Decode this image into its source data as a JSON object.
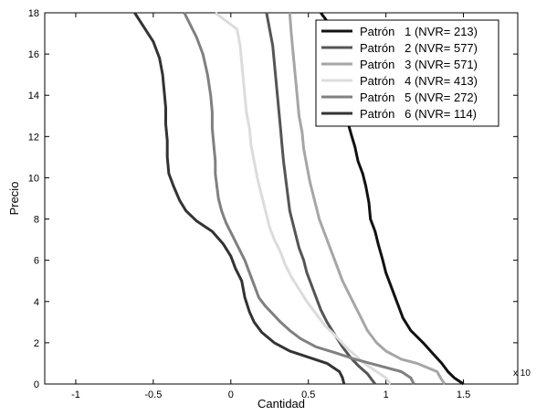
{
  "chart_data": {
    "type": "line",
    "xlabel": "Cantidad",
    "ylabel": "Precio",
    "exponent_label": "x 10",
    "xlim": [
      -1.2,
      1.85
    ],
    "ylim": [
      0,
      18
    ],
    "x_ticks": [
      -1,
      -0.5,
      0,
      0.5,
      1,
      1.5
    ],
    "x_tick_labels": [
      "-1",
      "-0.5",
      "0",
      "0.5",
      "1",
      "1.5"
    ],
    "y_ticks": [
      0,
      2,
      4,
      6,
      8,
      10,
      12,
      14,
      16,
      18
    ],
    "y_tick_labels": [
      "0",
      "2",
      "4",
      "6",
      "8",
      "10",
      "12",
      "14",
      "16",
      "18"
    ],
    "grid": false,
    "legend_position": "top-right",
    "series": [
      {
        "name": "Patrón   1 (NVR= 213)",
        "color": "#111111",
        "points": [
          [
            1.5,
            0
          ],
          [
            1.44,
            0.3
          ],
          [
            1.4,
            0.6
          ],
          [
            1.36,
            1.0
          ],
          [
            1.3,
            1.5
          ],
          [
            1.24,
            2.0
          ],
          [
            1.16,
            2.6
          ],
          [
            1.11,
            3.2
          ],
          [
            1.07,
            4.0
          ],
          [
            1.04,
            4.6
          ],
          [
            1.0,
            5.4
          ],
          [
            0.98,
            6.0
          ],
          [
            0.95,
            6.8
          ],
          [
            0.93,
            7.4
          ],
          [
            0.9,
            8.0
          ],
          [
            0.89,
            8.8
          ],
          [
            0.87,
            9.6
          ],
          [
            0.85,
            10.2
          ],
          [
            0.82,
            10.8
          ],
          [
            0.8,
            11.5
          ],
          [
            0.78,
            12.0
          ],
          [
            0.75,
            12.8
          ],
          [
            0.73,
            13.6
          ],
          [
            0.72,
            14.2
          ],
          [
            0.71,
            14.8
          ],
          [
            0.7,
            15.6
          ],
          [
            0.68,
            16.4
          ],
          [
            0.65,
            17.0
          ],
          [
            0.62,
            17.6
          ],
          [
            0.58,
            18.0
          ]
        ]
      },
      {
        "name": "Patrón   2 (NVR= 577)",
        "color": "#555555",
        "points": [
          [
            0.93,
            0
          ],
          [
            0.91,
            0.2
          ],
          [
            0.88,
            0.5
          ],
          [
            0.82,
            0.9
          ],
          [
            0.77,
            1.3
          ],
          [
            0.72,
            1.8
          ],
          [
            0.67,
            2.4
          ],
          [
            0.62,
            3.0
          ],
          [
            0.58,
            3.6
          ],
          [
            0.55,
            4.2
          ],
          [
            0.52,
            4.8
          ],
          [
            0.49,
            5.4
          ],
          [
            0.47,
            6.0
          ],
          [
            0.44,
            6.6
          ],
          [
            0.42,
            7.2
          ],
          [
            0.4,
            7.8
          ],
          [
            0.38,
            8.4
          ],
          [
            0.37,
            9.0
          ],
          [
            0.36,
            9.6
          ],
          [
            0.35,
            10.2
          ],
          [
            0.34,
            10.8
          ],
          [
            0.33,
            11.6
          ],
          [
            0.32,
            12.4
          ],
          [
            0.31,
            13.2
          ],
          [
            0.3,
            14.0
          ],
          [
            0.29,
            14.8
          ],
          [
            0.28,
            15.6
          ],
          [
            0.27,
            16.4
          ],
          [
            0.25,
            17.2
          ],
          [
            0.23,
            18.0
          ]
        ]
      },
      {
        "name": "Patrón   3 (NVR= 571)",
        "color": "#a6a6a6",
        "points": [
          [
            1.38,
            0
          ],
          [
            1.36,
            0.2
          ],
          [
            1.33,
            0.6
          ],
          [
            1.2,
            1.0
          ],
          [
            1.1,
            1.2
          ],
          [
            1.0,
            1.6
          ],
          [
            0.94,
            2.0
          ],
          [
            0.88,
            2.6
          ],
          [
            0.84,
            3.2
          ],
          [
            0.8,
            3.8
          ],
          [
            0.76,
            4.4
          ],
          [
            0.72,
            5.0
          ],
          [
            0.69,
            5.6
          ],
          [
            0.66,
            6.2
          ],
          [
            0.63,
            6.8
          ],
          [
            0.6,
            7.4
          ],
          [
            0.57,
            8.0
          ],
          [
            0.55,
            8.6
          ],
          [
            0.53,
            9.2
          ],
          [
            0.51,
            9.8
          ],
          [
            0.49,
            10.6
          ],
          [
            0.47,
            11.4
          ],
          [
            0.46,
            12.2
          ],
          [
            0.44,
            13.0
          ],
          [
            0.43,
            13.8
          ],
          [
            0.42,
            14.6
          ],
          [
            0.41,
            15.4
          ],
          [
            0.4,
            16.2
          ],
          [
            0.39,
            17.0
          ],
          [
            0.38,
            18.0
          ]
        ]
      },
      {
        "name": "Patrón   4 (NVR= 413)",
        "color": "#dcdcdc",
        "points": [
          [
            1.03,
            0
          ],
          [
            1.0,
            0.3
          ],
          [
            0.94,
            0.6
          ],
          [
            0.86,
            1.0
          ],
          [
            0.8,
            1.4
          ],
          [
            0.74,
            1.8
          ],
          [
            0.68,
            2.3
          ],
          [
            0.61,
            2.8
          ],
          [
            0.55,
            3.4
          ],
          [
            0.49,
            4.0
          ],
          [
            0.44,
            4.6
          ],
          [
            0.39,
            5.2
          ],
          [
            0.35,
            5.8
          ],
          [
            0.32,
            6.4
          ],
          [
            0.28,
            7.0
          ],
          [
            0.25,
            7.6
          ],
          [
            0.23,
            8.2
          ],
          [
            0.21,
            8.8
          ],
          [
            0.19,
            9.4
          ],
          [
            0.17,
            10.0
          ],
          [
            0.15,
            10.8
          ],
          [
            0.13,
            11.6
          ],
          [
            0.12,
            12.4
          ],
          [
            0.1,
            13.2
          ],
          [
            0.09,
            14.0
          ],
          [
            0.08,
            14.8
          ],
          [
            0.07,
            15.6
          ],
          [
            0.06,
            16.4
          ],
          [
            0.04,
            17.2
          ],
          [
            -0.1,
            18.0
          ]
        ]
      },
      {
        "name": "Patrón   5 (NVR= 272)",
        "color": "#808080",
        "points": [
          [
            1.18,
            0
          ],
          [
            1.16,
            0.3
          ],
          [
            1.1,
            0.6
          ],
          [
            0.95,
            0.9
          ],
          [
            0.8,
            1.2
          ],
          [
            0.68,
            1.5
          ],
          [
            0.55,
            1.8
          ],
          [
            0.45,
            2.2
          ],
          [
            0.38,
            2.6
          ],
          [
            0.32,
            3.0
          ],
          [
            0.27,
            3.4
          ],
          [
            0.22,
            3.8
          ],
          [
            0.18,
            4.2
          ],
          [
            0.15,
            4.8
          ],
          [
            0.12,
            5.4
          ],
          [
            0.09,
            6.0
          ],
          [
            0.05,
            6.6
          ],
          [
            0.01,
            7.2
          ],
          [
            -0.03,
            7.8
          ],
          [
            -0.06,
            8.4
          ],
          [
            -0.08,
            9.0
          ],
          [
            -0.09,
            9.6
          ],
          [
            -0.1,
            10.2
          ],
          [
            -0.1,
            10.8
          ],
          [
            -0.11,
            11.6
          ],
          [
            -0.12,
            12.4
          ],
          [
            -0.12,
            13.2
          ],
          [
            -0.13,
            14.0
          ],
          [
            -0.15,
            15.0
          ],
          [
            -0.18,
            16.0
          ],
          [
            -0.22,
            16.8
          ],
          [
            -0.26,
            17.4
          ],
          [
            -0.3,
            18.0
          ]
        ]
      },
      {
        "name": "Patrón   6 (NVR= 114)",
        "color": "#333333",
        "points": [
          [
            0.73,
            0
          ],
          [
            0.72,
            0.3
          ],
          [
            0.7,
            0.6
          ],
          [
            0.62,
            1.0
          ],
          [
            0.5,
            1.3
          ],
          [
            0.38,
            1.6
          ],
          [
            0.28,
            2.0
          ],
          [
            0.2,
            2.5
          ],
          [
            0.15,
            3.0
          ],
          [
            0.12,
            3.5
          ],
          [
            0.09,
            4.2
          ],
          [
            0.07,
            5.0
          ],
          [
            0.03,
            5.6
          ],
          [
            0.0,
            6.2
          ],
          [
            -0.05,
            6.8
          ],
          [
            -0.12,
            7.4
          ],
          [
            -0.22,
            7.9
          ],
          [
            -0.29,
            8.4
          ],
          [
            -0.33,
            8.9
          ],
          [
            -0.37,
            9.6
          ],
          [
            -0.4,
            10.2
          ],
          [
            -0.41,
            11.0
          ],
          [
            -0.41,
            11.8
          ],
          [
            -0.42,
            12.6
          ],
          [
            -0.42,
            13.4
          ],
          [
            -0.43,
            14.2
          ],
          [
            -0.44,
            15.0
          ],
          [
            -0.46,
            15.8
          ],
          [
            -0.5,
            16.6
          ],
          [
            -0.56,
            17.3
          ],
          [
            -0.62,
            18.0
          ]
        ]
      }
    ]
  }
}
